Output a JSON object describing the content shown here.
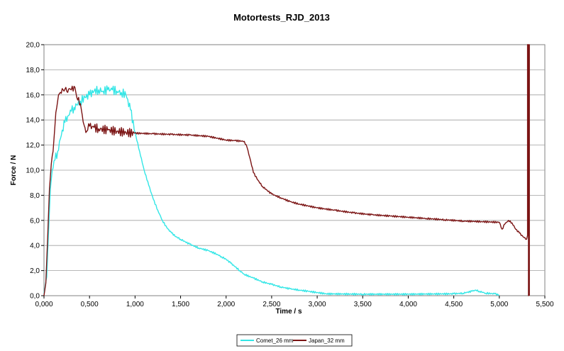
{
  "chart_data": {
    "type": "line",
    "title": "Motortests_RJD_2013",
    "xlabel": "Time / s",
    "ylabel": "Force / N",
    "xlim": [
      0,
      5.5
    ],
    "ylim": [
      0,
      20
    ],
    "x_ticks": [
      "0,000",
      "0,500",
      "1,000",
      "1,500",
      "2,000",
      "2,500",
      "3,000",
      "3,500",
      "4,000",
      "4,500",
      "5,000",
      "5,500"
    ],
    "y_ticks": [
      "0,0",
      "2,0",
      "4,0",
      "6,0",
      "8,0",
      "10,0",
      "12,0",
      "14,0",
      "16,0",
      "18,0",
      "20,0"
    ],
    "grid": "horizontal",
    "legend_position": "bottom",
    "plot_background": "#ffffff",
    "series": [
      {
        "name": "Comet_26 mm",
        "color": "#33e6e6",
        "points": [
          [
            0.0,
            0.2
          ],
          [
            0.03,
            1.5
          ],
          [
            0.05,
            5.0
          ],
          [
            0.07,
            8.5
          ],
          [
            0.09,
            10.0
          ],
          [
            0.12,
            10.8
          ],
          [
            0.15,
            11.5
          ],
          [
            0.18,
            12.5
          ],
          [
            0.2,
            13.2
          ],
          [
            0.23,
            13.8
          ],
          [
            0.26,
            14.3
          ],
          [
            0.3,
            14.7
          ],
          [
            0.33,
            15.0
          ],
          [
            0.36,
            15.2
          ],
          [
            0.4,
            15.5
          ],
          [
            0.45,
            15.8
          ],
          [
            0.5,
            16.0
          ],
          [
            0.55,
            16.3
          ],
          [
            0.6,
            16.4
          ],
          [
            0.65,
            16.3
          ],
          [
            0.7,
            16.4
          ],
          [
            0.75,
            16.4
          ],
          [
            0.8,
            16.3
          ],
          [
            0.85,
            16.2
          ],
          [
            0.9,
            16.0
          ],
          [
            0.95,
            14.8
          ],
          [
            1.0,
            13.0
          ],
          [
            1.05,
            11.5
          ],
          [
            1.1,
            10.0
          ],
          [
            1.15,
            8.8
          ],
          [
            1.2,
            7.7
          ],
          [
            1.25,
            6.8
          ],
          [
            1.3,
            6.0
          ],
          [
            1.35,
            5.4
          ],
          [
            1.4,
            5.0
          ],
          [
            1.45,
            4.7
          ],
          [
            1.5,
            4.5
          ],
          [
            1.6,
            4.1
          ],
          [
            1.7,
            3.8
          ],
          [
            1.8,
            3.6
          ],
          [
            1.9,
            3.3
          ],
          [
            1.95,
            3.1
          ],
          [
            2.0,
            2.9
          ],
          [
            2.05,
            2.6
          ],
          [
            2.1,
            2.3
          ],
          [
            2.15,
            2.0
          ],
          [
            2.2,
            1.7
          ],
          [
            2.3,
            1.4
          ],
          [
            2.4,
            1.1
          ],
          [
            2.5,
            0.9
          ],
          [
            2.6,
            0.7
          ],
          [
            2.7,
            0.55
          ],
          [
            2.8,
            0.45
          ],
          [
            2.9,
            0.35
          ],
          [
            3.0,
            0.25
          ],
          [
            3.1,
            0.15
          ],
          [
            3.5,
            0.12
          ],
          [
            4.0,
            0.12
          ],
          [
            4.5,
            0.15
          ],
          [
            4.6,
            0.2
          ],
          [
            4.7,
            0.35
          ],
          [
            4.74,
            0.45
          ],
          [
            4.78,
            0.35
          ],
          [
            4.85,
            0.2
          ],
          [
            4.95,
            0.15
          ],
          [
            5.0,
            0.05
          ]
        ]
      },
      {
        "name": "Japan_32 mm",
        "color": "#7b1414",
        "points": [
          [
            0.0,
            0.0
          ],
          [
            0.02,
            1.0
          ],
          [
            0.04,
            4.5
          ],
          [
            0.06,
            8.5
          ],
          [
            0.08,
            10.5
          ],
          [
            0.1,
            11.5
          ],
          [
            0.12,
            13.5
          ],
          [
            0.14,
            15.0
          ],
          [
            0.16,
            16.0
          ],
          [
            0.18,
            16.2
          ],
          [
            0.2,
            16.5
          ],
          [
            0.22,
            16.3
          ],
          [
            0.24,
            16.6
          ],
          [
            0.26,
            16.2
          ],
          [
            0.28,
            16.5
          ],
          [
            0.3,
            16.4
          ],
          [
            0.32,
            16.3
          ],
          [
            0.34,
            16.6
          ],
          [
            0.36,
            15.8
          ],
          [
            0.38,
            15.8
          ],
          [
            0.4,
            15.3
          ],
          [
            0.42,
            14.4
          ],
          [
            0.44,
            13.6
          ],
          [
            0.46,
            13.0
          ],
          [
            0.48,
            13.2
          ],
          [
            0.5,
            13.5
          ],
          [
            0.55,
            13.4
          ],
          [
            0.6,
            13.3
          ],
          [
            0.7,
            13.2
          ],
          [
            0.8,
            13.1
          ],
          [
            0.9,
            13.0
          ],
          [
            1.0,
            12.95
          ],
          [
            1.2,
            12.9
          ],
          [
            1.4,
            12.85
          ],
          [
            1.6,
            12.8
          ],
          [
            1.8,
            12.7
          ],
          [
            2.0,
            12.4
          ],
          [
            2.1,
            12.35
          ],
          [
            2.2,
            12.3
          ],
          [
            2.23,
            11.8
          ],
          [
            2.26,
            11.0
          ],
          [
            2.3,
            9.8
          ],
          [
            2.35,
            9.2
          ],
          [
            2.4,
            8.7
          ],
          [
            2.45,
            8.4
          ],
          [
            2.5,
            8.1
          ],
          [
            2.6,
            7.8
          ],
          [
            2.7,
            7.5
          ],
          [
            2.8,
            7.3
          ],
          [
            3.0,
            7.0
          ],
          [
            3.2,
            6.8
          ],
          [
            3.4,
            6.6
          ],
          [
            3.6,
            6.45
          ],
          [
            3.8,
            6.35
          ],
          [
            4.0,
            6.25
          ],
          [
            4.2,
            6.15
          ],
          [
            4.4,
            6.05
          ],
          [
            4.6,
            5.95
          ],
          [
            4.8,
            5.9
          ],
          [
            5.0,
            5.85
          ],
          [
            5.03,
            5.3
          ],
          [
            5.06,
            5.7
          ],
          [
            5.1,
            6.0
          ],
          [
            5.14,
            5.8
          ],
          [
            5.18,
            5.3
          ],
          [
            5.22,
            5.0
          ],
          [
            5.26,
            4.7
          ],
          [
            5.3,
            4.5
          ],
          [
            5.31,
            4.8
          ],
          [
            5.31,
            20.0
          ],
          [
            5.32,
            20.0
          ],
          [
            5.32,
            0.0
          ],
          [
            5.33,
            20.0
          ],
          [
            5.33,
            0.0
          ]
        ]
      }
    ]
  }
}
